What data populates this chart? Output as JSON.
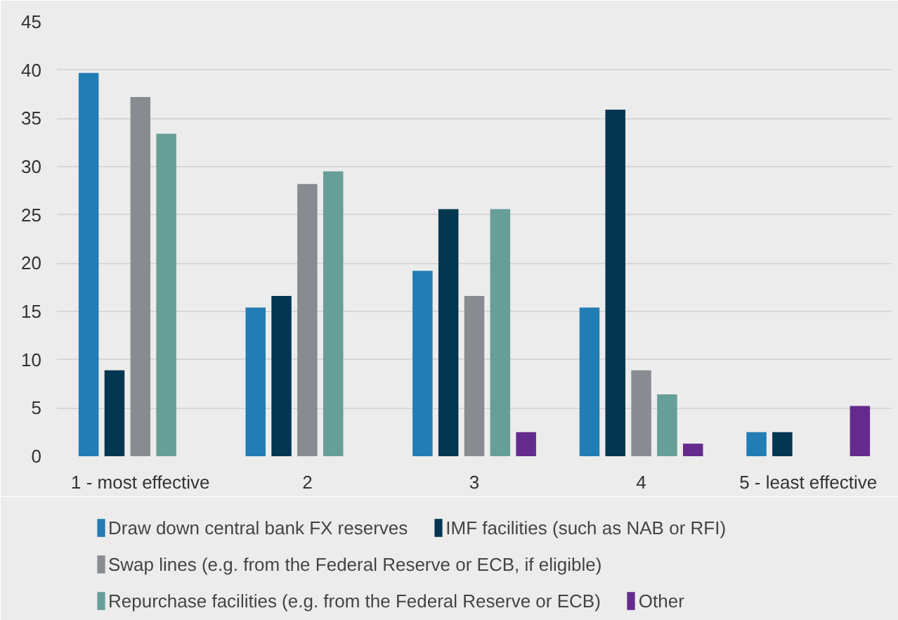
{
  "chart_data": {
    "type": "bar",
    "categories": [
      "1 - most effective",
      "2",
      "3",
      "4",
      "5 - least effective"
    ],
    "series": [
      {
        "name": "Draw down central bank FX reserves",
        "color": "#237db5",
        "values": [
          39.7,
          15.4,
          19.2,
          15.4,
          2.5
        ]
      },
      {
        "name": "IMF facilities (such as NAB or RFI)",
        "color": "#023651",
        "values": [
          8.9,
          16.6,
          25.6,
          35.9,
          2.5
        ]
      },
      {
        "name": "Swap lines (e.g. from the Federal Reserve or ECB, if eligible)",
        "color": "#888b90",
        "values": [
          37.2,
          28.2,
          16.6,
          8.9,
          null
        ]
      },
      {
        "name": "Repurchase facilities (e.g. from the Federal Reserve or ECB)",
        "color": "#689e98",
        "values": [
          33.4,
          29.5,
          25.6,
          6.4,
          null
        ]
      },
      {
        "name": "Other",
        "color": "#652b8c",
        "values": [
          null,
          null,
          2.5,
          1.3,
          5.2
        ]
      }
    ],
    "ylim": [
      0,
      45
    ],
    "yticks": [
      0,
      5,
      10,
      15,
      20,
      25,
      30,
      35,
      40,
      45
    ],
    "grid": "y",
    "legend": "bottom"
  }
}
